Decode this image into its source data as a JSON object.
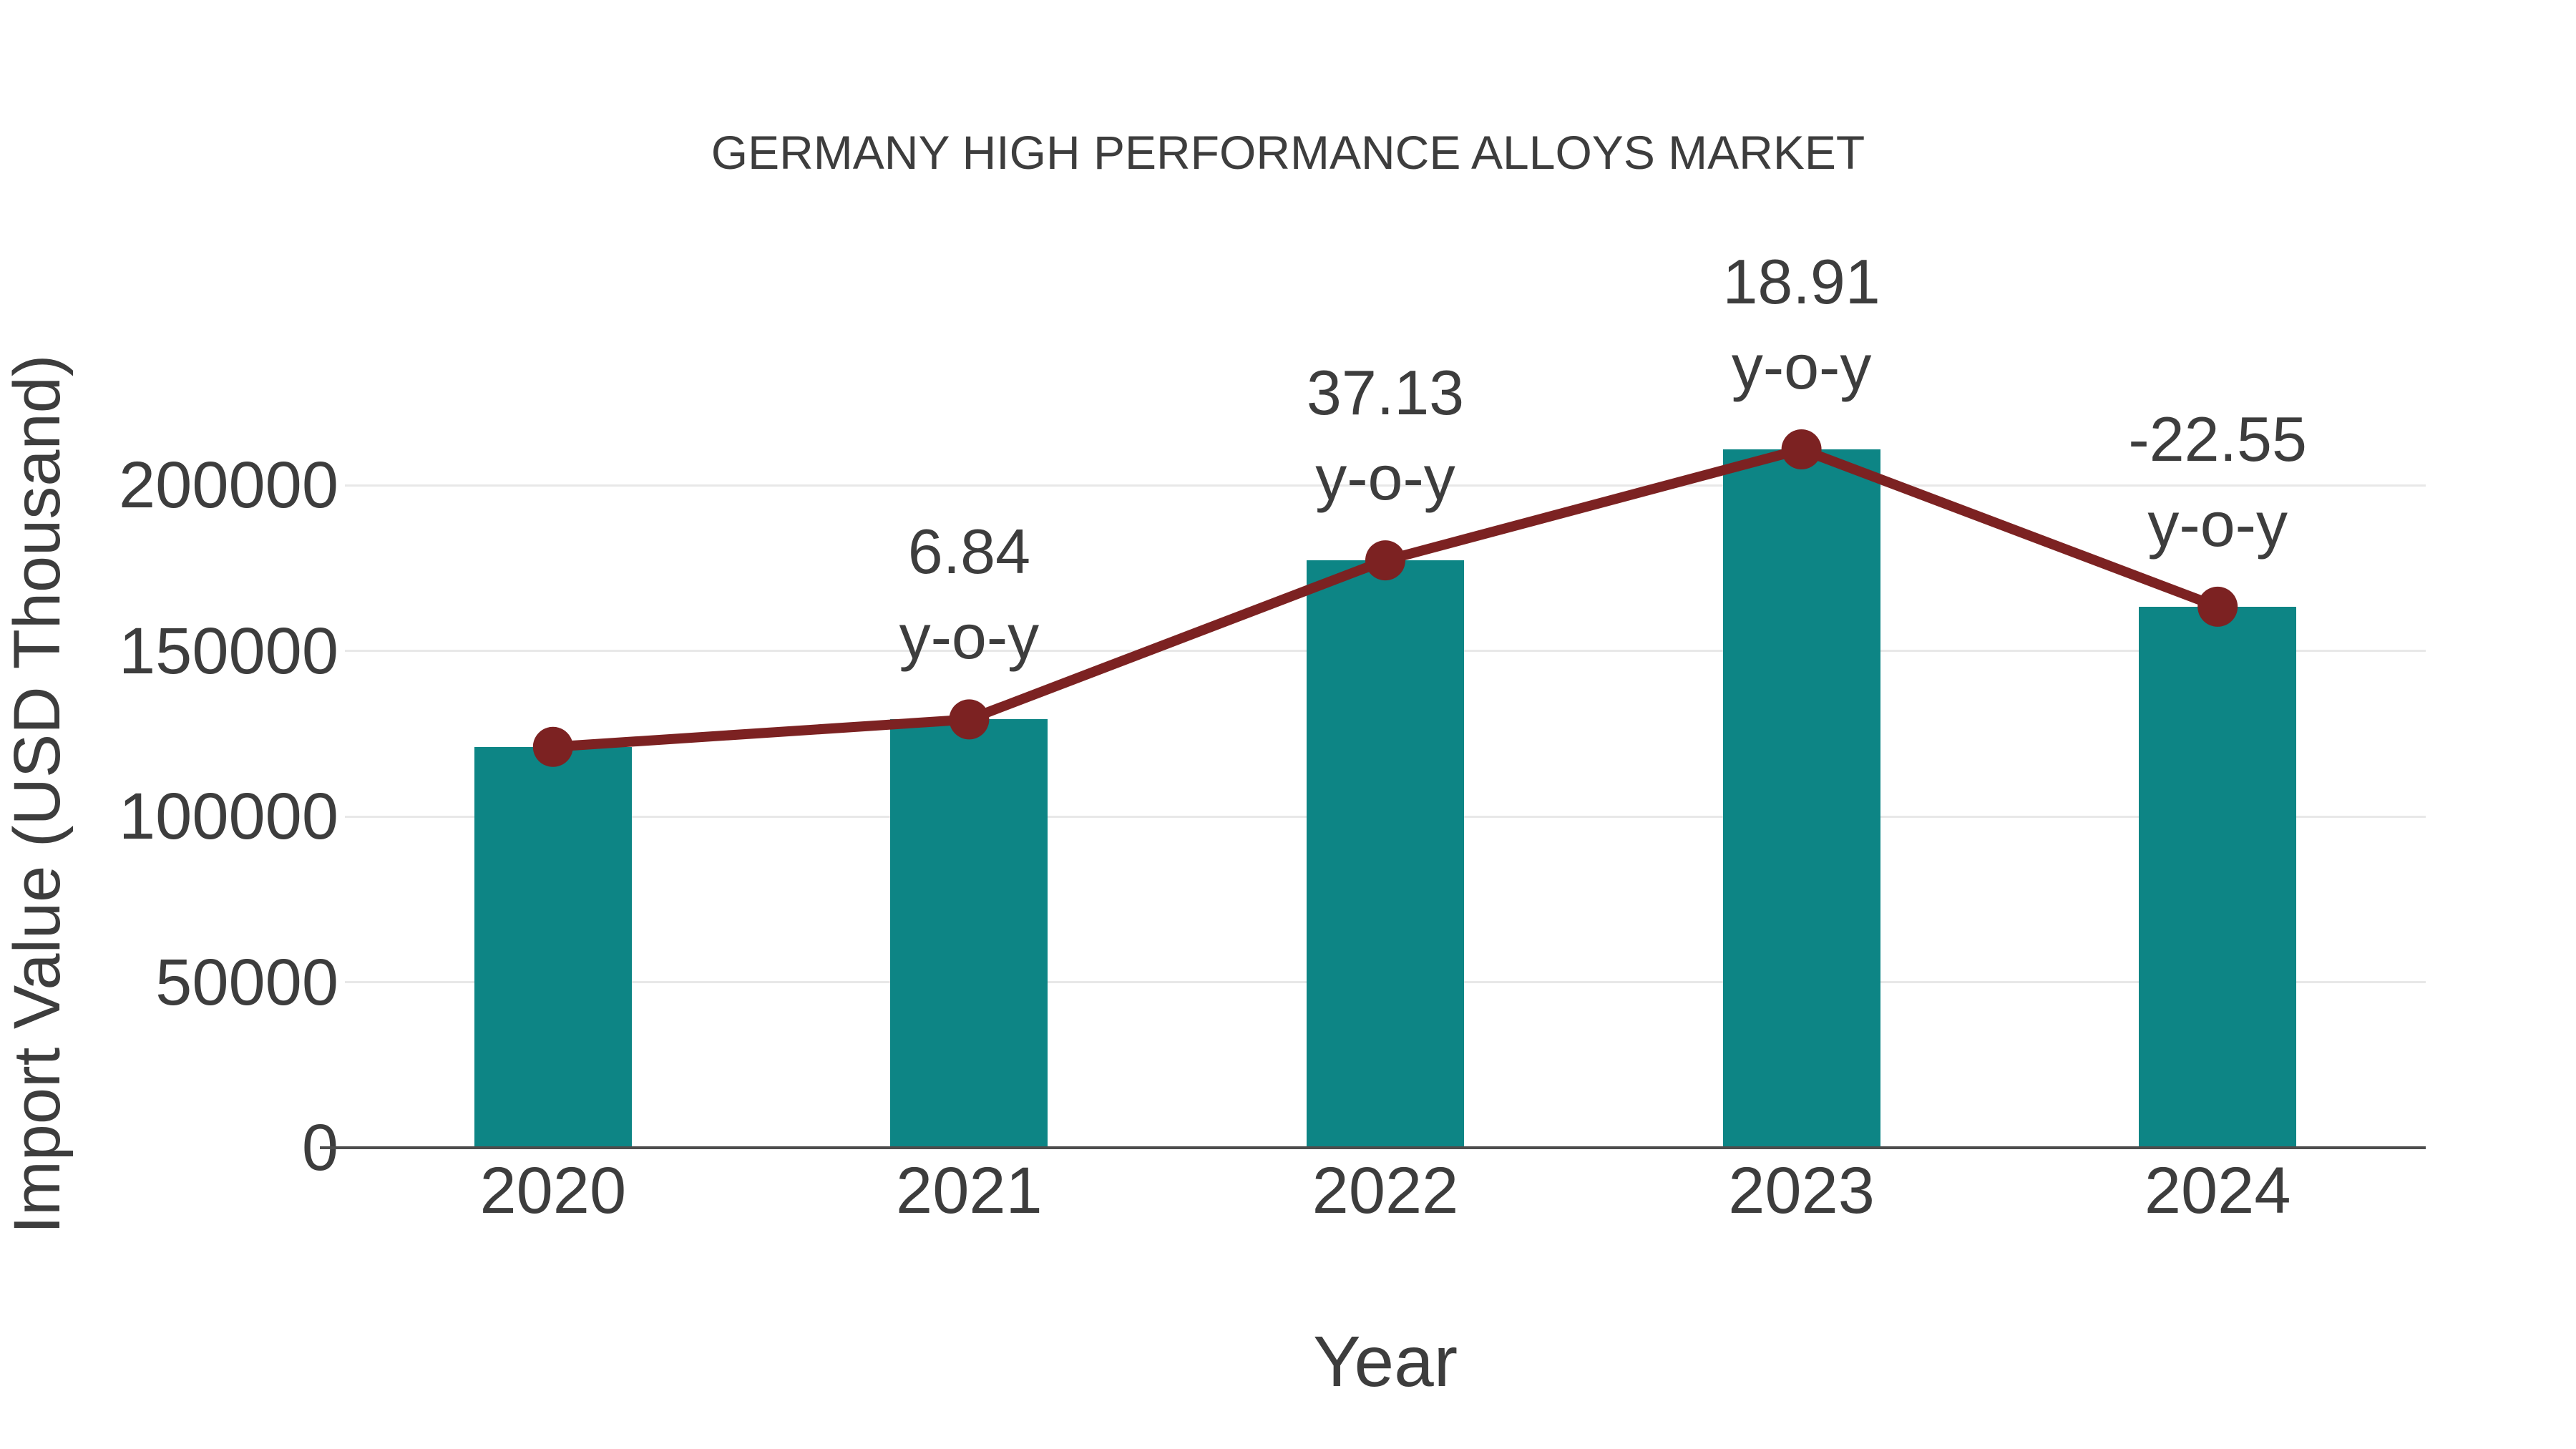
{
  "colors": {
    "bar": "#0d8585",
    "line": "#7c2222",
    "marker": "#7c2222",
    "grid": "#e8e8e8",
    "axis": "#4d4d4d",
    "text": "#3d3d3d",
    "background": "#ffffff"
  },
  "chart_data": {
    "type": "bar",
    "title": "GERMANY HIGH PERFORMANCE ALLOYS MARKET",
    "xlabel": "Year",
    "ylabel": "Import Value (USD Thousand)",
    "categories": [
      "2020",
      "2021",
      "2022",
      "2023",
      "2024"
    ],
    "values": [
      121000,
      129300,
      177300,
      210800,
      163300
    ],
    "line_overlay": {
      "description": "line with round markers passing through each bar top",
      "values": [
        121000,
        129300,
        177300,
        210800,
        163300
      ]
    },
    "yoy_annotations": [
      {
        "category": "2021",
        "value": "6.84",
        "label": "y-o-y"
      },
      {
        "category": "2022",
        "value": "37.13",
        "label": "y-o-y"
      },
      {
        "category": "2023",
        "value": "18.91",
        "label": "y-o-y"
      },
      {
        "category": "2024",
        "value": "-22.55",
        "label": "y-o-y"
      }
    ],
    "yticks": [
      0,
      50000,
      100000,
      150000,
      200000
    ],
    "ylim": [
      0,
      220000
    ],
    "grid": "horizontal",
    "legend": "none"
  }
}
